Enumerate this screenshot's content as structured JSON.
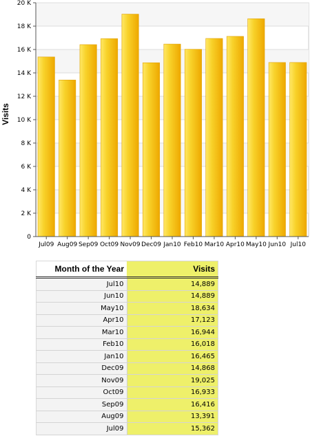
{
  "chart_data": {
    "type": "bar",
    "title": "",
    "xlabel": "",
    "ylabel": "Visits",
    "ylim": [
      0,
      20000
    ],
    "yticks": [
      0,
      2000,
      4000,
      6000,
      8000,
      10000,
      12000,
      14000,
      16000,
      18000,
      20000
    ],
    "ytick_labels": [
      "0",
      "2 K",
      "4 K",
      "6 K",
      "8 K",
      "10 K",
      "12 K",
      "14 K",
      "16 K",
      "18 K",
      "20 K"
    ],
    "categories": [
      "Jul09",
      "Aug09",
      "Sep09",
      "Oct09",
      "Nov09",
      "Dec09",
      "Jan10",
      "Feb10",
      "Mar10",
      "Apr10",
      "May10",
      "Jun10",
      "Jul10"
    ],
    "values": [
      15362,
      13391,
      16416,
      16933,
      19025,
      14868,
      16465,
      16018,
      16944,
      17123,
      18634,
      14889,
      14889
    ],
    "grid": true,
    "bar_color": "#f0b400",
    "bar_highlight": "#ffe040"
  },
  "table": {
    "headers": {
      "month": "Month of the Year",
      "visits": "Visits"
    },
    "rows": [
      {
        "month": "Jul10",
        "visits": "14,889"
      },
      {
        "month": "Jun10",
        "visits": "14,889"
      },
      {
        "month": "May10",
        "visits": "18,634"
      },
      {
        "month": "Apr10",
        "visits": "17,123"
      },
      {
        "month": "Mar10",
        "visits": "16,944"
      },
      {
        "month": "Feb10",
        "visits": "16,018"
      },
      {
        "month": "Jan10",
        "visits": "16,465"
      },
      {
        "month": "Dec09",
        "visits": "14,868"
      },
      {
        "month": "Nov09",
        "visits": "19,025"
      },
      {
        "month": "Oct09",
        "visits": "16,933"
      },
      {
        "month": "Sep09",
        "visits": "16,416"
      },
      {
        "month": "Aug09",
        "visits": "13,391"
      },
      {
        "month": "Jul09",
        "visits": "15,362"
      }
    ]
  }
}
